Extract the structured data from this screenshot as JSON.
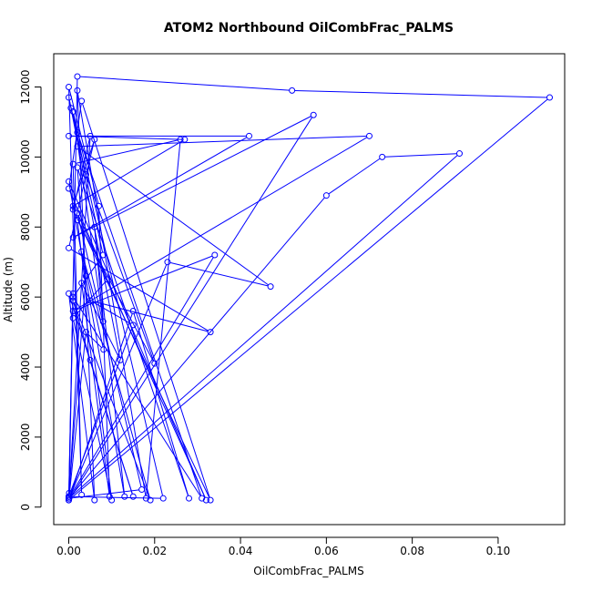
{
  "chart_data": {
    "type": "line",
    "title": "ATOM2 Northbound OilCombFrac_PALMS",
    "xlabel": "OilCombFrac_PALMS",
    "ylabel": "Altitude (m)",
    "xlim": [
      0,
      0.114
    ],
    "ylim": [
      0,
      12600
    ],
    "x_ticks": [
      0.0,
      0.02,
      0.04,
      0.06,
      0.08,
      0.1
    ],
    "x_tick_labels": [
      "0.00",
      "0.02",
      "0.04",
      "0.06",
      "0.08",
      "0.10"
    ],
    "y_ticks": [
      0,
      2000,
      4000,
      6000,
      8000,
      10000,
      12000
    ],
    "y_tick_labels": [
      "0",
      "2000",
      "4000",
      "6000",
      "8000",
      "10000",
      "12000"
    ],
    "grid": false,
    "series_color": "#0000ff",
    "marker": "open-circle",
    "x": [
      0.0001,
      0.004,
      0.0081,
      0.003,
      0.019,
      0.001,
      0.005,
      0.015,
      0.0,
      0.006,
      0.002,
      0.018,
      0.026,
      0.001,
      0.003,
      0.0,
      0.007,
      0.0095,
      0.003,
      0.012,
      0.0005,
      0.002,
      0.031,
      0.001,
      0.008,
      0.0,
      0.004,
      0.02,
      0.002,
      0.01,
      0.001,
      0.009,
      0.0,
      0.003,
      0.033,
      0.001,
      0.005,
      0.0,
      0.015,
      0.028,
      0.002,
      0.004,
      0.0,
      0.022,
      0.001,
      0.008,
      0.006,
      0.013,
      0.0,
      0.032,
      0.002,
      0.017,
      0.0001,
      0.023,
      0.047,
      0.002,
      0.07,
      0.001,
      0.034,
      0.0,
      0.06,
      0.073,
      0.091,
      0.0,
      0.002,
      0.052,
      0.112,
      0.0,
      0.057,
      0.001,
      0.042,
      0.0,
      0.027,
      0.001,
      0.006,
      0.0,
      0.033,
      0.005,
      0.015,
      0.0,
      0.001,
      0.0001
    ],
    "y": [
      300,
      5000,
      4500,
      7300,
      200,
      5900,
      4200,
      300,
      6100,
      200,
      11900,
      250,
      10500,
      9800,
      350,
      12000,
      8600,
      300,
      6400,
      4200,
      11400,
      10700,
      250,
      6000,
      7200,
      11700,
      9500,
      4100,
      8200,
      200,
      5400,
      6500,
      9100,
      11600,
      200,
      8500,
      10600,
      200,
      5600,
      250,
      9700,
      6600,
      300,
      250,
      11300,
      5300,
      8000,
      300,
      9300,
      200,
      8400,
      500,
      250,
      7000,
      6300,
      10300,
      10600,
      5600,
      7200,
      250,
      8900,
      10000,
      10100,
      250,
      12300,
      11900,
      11700,
      200,
      11200,
      7700,
      10600,
      10600,
      10500,
      8600,
      10500,
      7400,
      5000,
      5900,
      5200,
      300,
      6100,
      400
    ]
  }
}
